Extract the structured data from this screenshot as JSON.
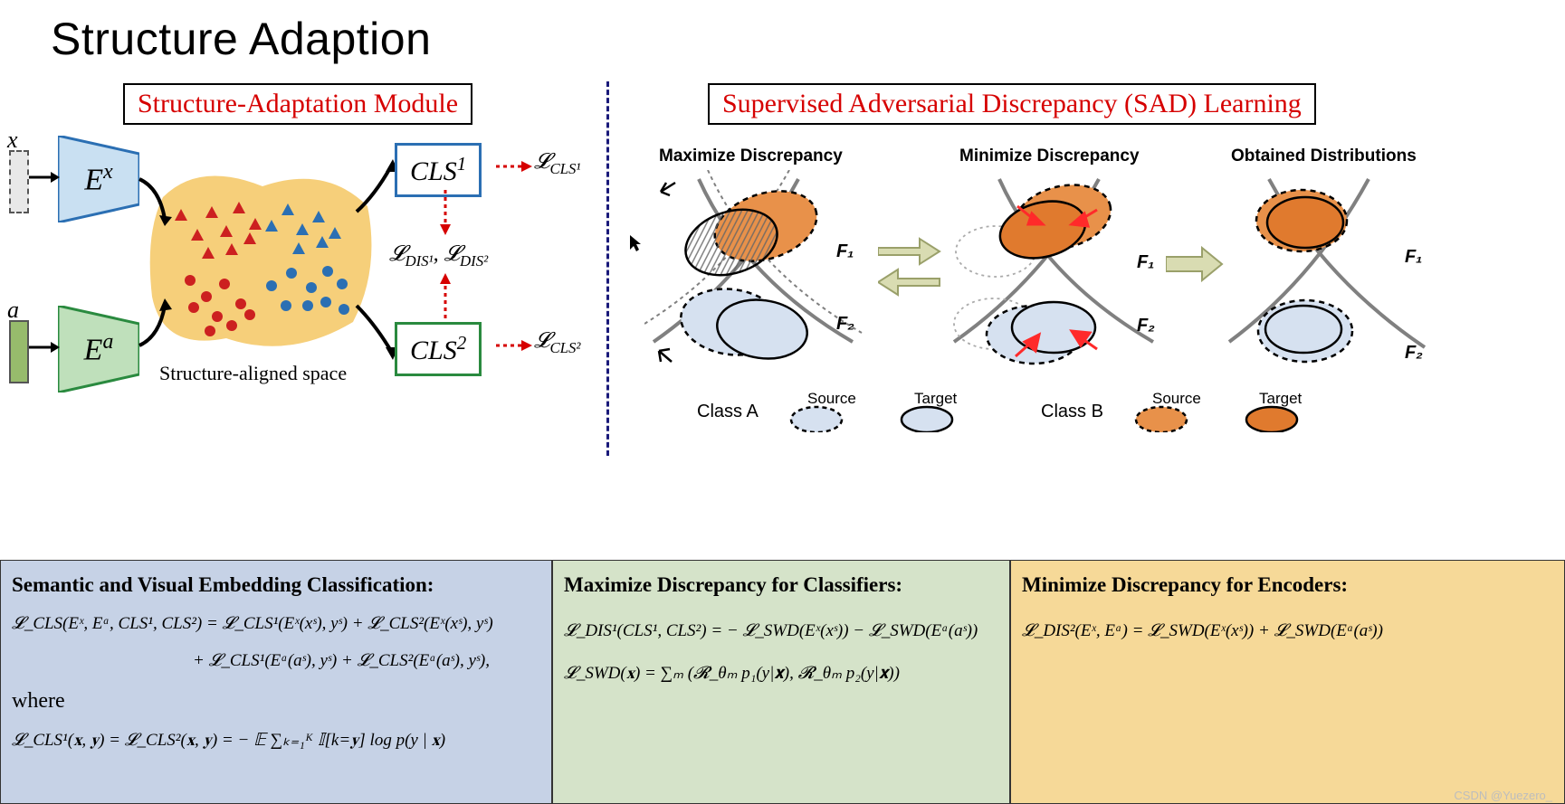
{
  "title": "Structure Adaption",
  "left_module": {
    "box_title": "Structure-Adaptation Module",
    "title_color": "#d60000",
    "input_x_label": "x",
    "input_a_label": "a",
    "encoder_x": {
      "label": "E",
      "sup": "x",
      "stroke": "#2b6fb3",
      "fill": "#c9e0f2"
    },
    "encoder_a": {
      "label": "E",
      "sup": "a",
      "stroke": "#2a8a3f",
      "fill": "#bfe0bb"
    },
    "space_label": "Structure-aligned space",
    "space_fill": "#f6cf7a",
    "cls1": {
      "label": "CLS",
      "sup": "1",
      "color": "#2b6fb3",
      "loss": "𝓛",
      "loss_sub": "CLS¹"
    },
    "cls2": {
      "label": "CLS",
      "sup": "2",
      "color": "#2a8a3f",
      "loss": "𝓛",
      "loss_sub": "CLS²"
    },
    "dis_label": "𝓛_DIS¹, 𝓛_DIS²",
    "points": {
      "red_triangles": [
        [
          200,
          158
        ],
        [
          218,
          180
        ],
        [
          234,
          155
        ],
        [
          250,
          176
        ],
        [
          264,
          150
        ],
        [
          282,
          168
        ],
        [
          230,
          200
        ],
        [
          256,
          196
        ],
        [
          276,
          184
        ]
      ],
      "blue_triangles": [
        [
          300,
          170
        ],
        [
          318,
          152
        ],
        [
          334,
          174
        ],
        [
          352,
          160
        ],
        [
          370,
          178
        ],
        [
          330,
          195
        ],
        [
          356,
          188
        ]
      ],
      "red_circles": [
        [
          210,
          230
        ],
        [
          228,
          248
        ],
        [
          248,
          234
        ],
        [
          266,
          256
        ],
        [
          240,
          270
        ],
        [
          214,
          260
        ],
        [
          232,
          286
        ],
        [
          256,
          280
        ],
        [
          276,
          268
        ]
      ],
      "blue_circles": [
        [
          300,
          236
        ],
        [
          322,
          222
        ],
        [
          344,
          238
        ],
        [
          362,
          220
        ],
        [
          378,
          234
        ],
        [
          340,
          258
        ],
        [
          316,
          258
        ],
        [
          360,
          254
        ],
        [
          380,
          262
        ]
      ],
      "red": "#cc2020",
      "blue": "#2b6fb3"
    }
  },
  "right_module": {
    "box_title": "Supervised Adversarial Discrepancy (SAD) Learning",
    "title_color": "#d60000",
    "col1_title": "Maximize Discrepancy",
    "col2_title": "Minimize Discrepancy",
    "col3_title": "Obtained Distributions",
    "f1": "F₁",
    "f2": "F₂",
    "legend": {
      "classA": "Class A",
      "classB": "Class B",
      "source": "Source",
      "target": "Target"
    },
    "colors": {
      "classA_fill": "#d6e1f0",
      "classB_fill": "#e8914a",
      "classB_target": "#e07a2e",
      "line": "#808080",
      "arrow_red": "#ff2a2a",
      "arrow_green_fill": "#d9dcb2",
      "arrow_green_stroke": "#9aa06a"
    }
  },
  "panels": {
    "p1": {
      "bg": "#c6d2e6",
      "title": "Semantic and Visual Embedding Classification:",
      "eq1": "𝓛_CLS(Eˣ, Eᵃ, CLS¹, CLS²) = 𝓛_CLS¹(Eˣ(xˢ), yˢ) + 𝓛_CLS²(Eˣ(xˢ), yˢ)",
      "eq1b": "+ 𝓛_CLS¹(Eᵃ(aˢ), yˢ) + 𝓛_CLS²(Eᵃ(aˢ), yˢ),",
      "where": "where",
      "eq2": "𝓛_CLS¹(𝐱, 𝐲) = 𝓛_CLS²(𝐱, 𝐲) = − 𝔼 ∑ₖ₌₁ᴷ 𝕀[k=𝐲] log p(y | 𝐱)"
    },
    "p2": {
      "bg": "#d5e3c9",
      "title": "Maximize Discrepancy for Classifiers:",
      "eq1": "𝓛_DIS¹(CLS¹, CLS²) = − 𝓛_SWD(Eˣ(xˢ)) − 𝓛_SWD(Eᵃ(aˢ))",
      "eq2": "𝓛_SWD(𝐱) = ∑ₘ (𝓡_θₘ p₁(y|𝐱), 𝓡_θₘ p₂(y|𝐱))"
    },
    "p3": {
      "bg": "#f6d998",
      "title": "Minimize Discrepancy for Encoders:",
      "eq1": "𝓛_DIS²(Eˣ, Eᵃ) = 𝓛_SWD(Eˣ(xˢ)) + 𝓛_SWD(Eᵃ(aˢ))"
    },
    "widths": [
      610,
      506,
      613
    ]
  },
  "watermark": "CSDN @Yuezero_"
}
